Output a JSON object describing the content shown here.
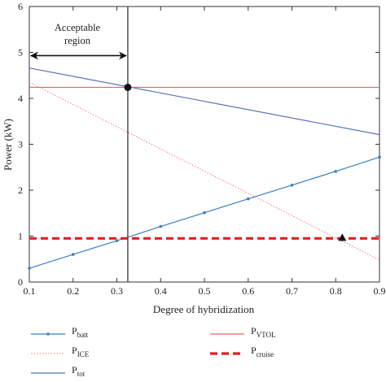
{
  "chart_data": {
    "type": "line",
    "xlabel": "Degree of hybridization",
    "ylabel": "Power (kW)",
    "xlim": [
      0.1,
      0.9
    ],
    "ylim": [
      0,
      6
    ],
    "xticks": [
      0.1,
      0.2,
      0.3,
      0.4,
      0.5,
      0.6,
      0.7,
      0.8,
      0.9
    ],
    "xtick_labels": [
      "0.1",
      "0.2",
      "0.3",
      "0.4",
      "0.5",
      "0.6",
      "0.7",
      "0.8",
      "0.9"
    ],
    "yticks": [
      0,
      1,
      2,
      3,
      4,
      5,
      6
    ],
    "ytick_labels": [
      "0",
      "1",
      "2",
      "3",
      "4",
      "5",
      "6"
    ],
    "grid": false,
    "legend_position": "below",
    "series": [
      {
        "name": "P_batt",
        "label_main": "P",
        "label_sub": "batt",
        "color": "#3a7fc2",
        "style": "solid-markers",
        "x": [
          0.1,
          0.2,
          0.3,
          0.4,
          0.5,
          0.6,
          0.7,
          0.8,
          0.9
        ],
        "y": [
          0.3,
          0.6,
          0.9,
          1.21,
          1.51,
          1.81,
          2.11,
          2.41,
          2.72
        ]
      },
      {
        "name": "P_ICE",
        "label_main": "P",
        "label_sub": "ICE",
        "color": "#e8806e",
        "style": "dotted",
        "x": [
          0.1,
          0.9
        ],
        "y": [
          4.35,
          0.48
        ]
      },
      {
        "name": "P_tot",
        "label_main": "P",
        "label_sub": "tot",
        "color": "#5a72b8",
        "style": "solid",
        "x": [
          0.1,
          0.9
        ],
        "y": [
          4.66,
          3.21
        ]
      },
      {
        "name": "P_VTOL",
        "label_main": "P",
        "label_sub": "VTOL",
        "color": "#e06666",
        "style": "solid",
        "x": [
          0.1,
          0.9
        ],
        "y": [
          4.24,
          4.24
        ]
      },
      {
        "name": "P_cruise",
        "label_main": "P",
        "label_sub": "cruise",
        "color": "#e02020",
        "style": "dashed-thick",
        "x": [
          0.1,
          0.9
        ],
        "y": [
          0.95,
          0.95
        ]
      }
    ],
    "vertical_line": {
      "x": 0.325,
      "color": "#444444"
    },
    "intersection_point": {
      "x": 0.325,
      "y": 4.24,
      "marker": "circle",
      "color": "#111111"
    },
    "triangle_point": {
      "x": 0.815,
      "y": 0.95,
      "marker": "triangle",
      "color": "#111111"
    },
    "annotation": {
      "lines": [
        "Acceptable",
        "region"
      ],
      "arrow_from_x": 0.1,
      "arrow_to_x": 0.325,
      "arrow_y": 4.93
    }
  }
}
